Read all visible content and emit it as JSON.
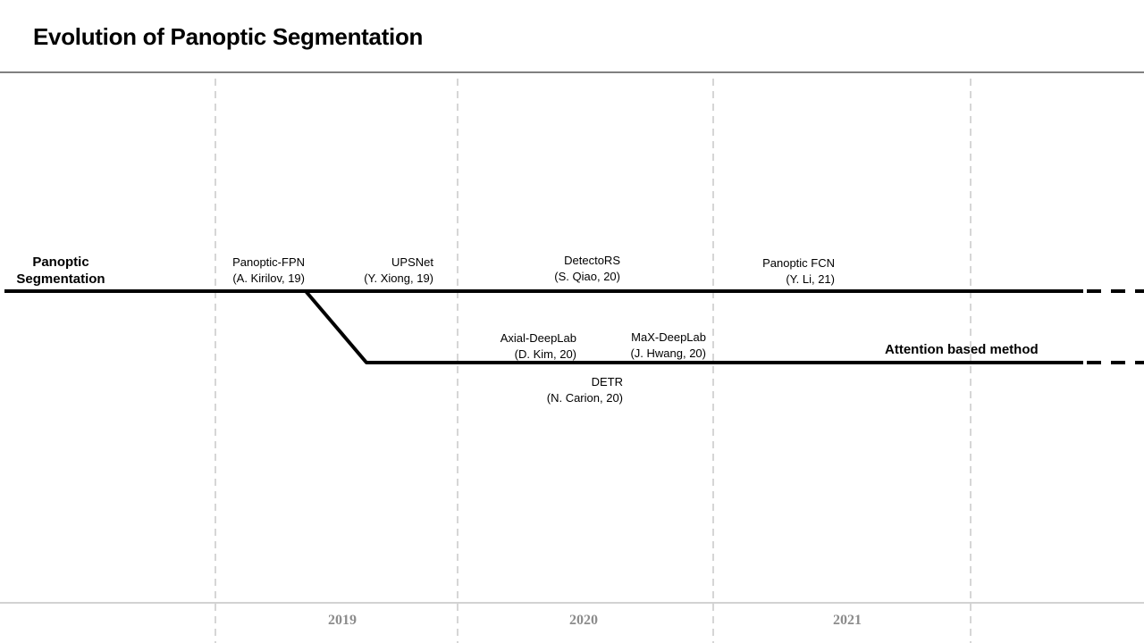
{
  "title": "Evolution of Panoptic Segmentation",
  "tracks": {
    "panoptic": {
      "label_line1": "Panoptic",
      "label_line2": "Segmentation"
    },
    "attention": {
      "label": "Attention based method"
    }
  },
  "years": [
    "2019",
    "2020",
    "2021"
  ],
  "methods": [
    {
      "name": "Panoptic-FPN",
      "ref": "(A. Kirilov,  19)"
    },
    {
      "name": "UPSNet",
      "ref": "(Y. Xiong,  19)"
    },
    {
      "name": "DetectoRS",
      "ref": "(S. Qiao,  20)"
    },
    {
      "name": "Panoptic  FCN",
      "ref": "(Y. Li,  21)"
    },
    {
      "name": "Axial-DeepLab",
      "ref": "(D. Kim,  20)"
    },
    {
      "name": "MaX-DeepLab",
      "ref": "(J. Hwang,  20)"
    },
    {
      "name": "DETR",
      "ref": "(N. Carion,  20)"
    }
  ]
}
